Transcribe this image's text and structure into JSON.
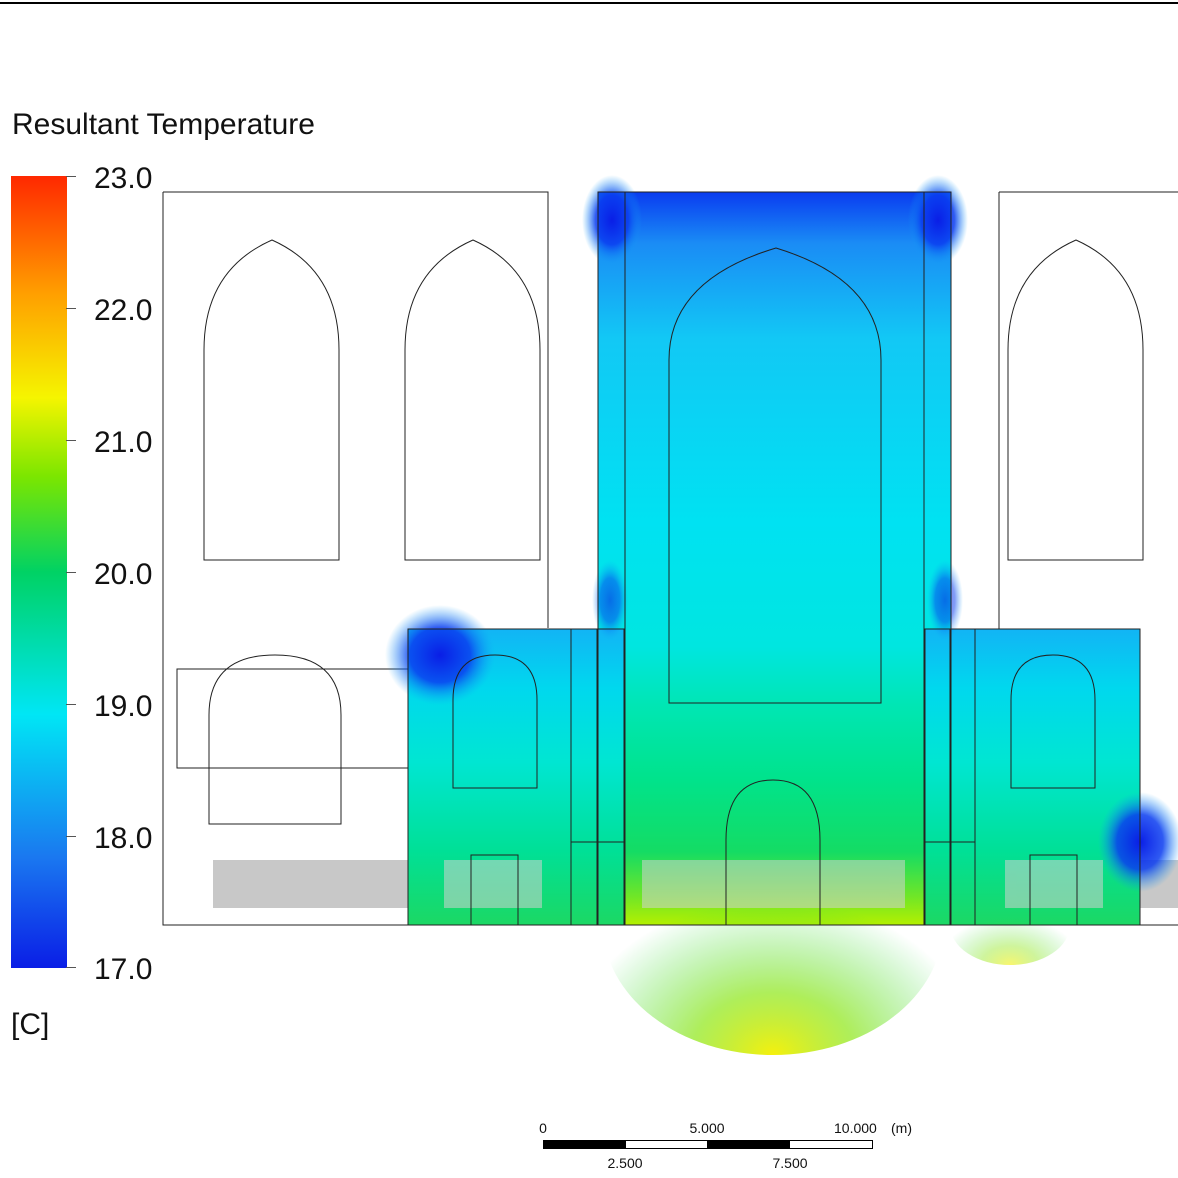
{
  "chart_data": {
    "type": "heatmap",
    "title": "Resultant Temperature",
    "unit": "[C]",
    "scale": {
      "min": 17.0,
      "max": 23.0
    },
    "ticks": [
      "23.0",
      "22.0",
      "21.0",
      "20.0",
      "19.0",
      "18.0",
      "17.0"
    ],
    "colors": {
      "cold": "#0a1ee6",
      "cool": "#00e6f5",
      "mid": "#00d264",
      "warm": "#f5f500",
      "hot": "#ff2800",
      "ground": "#c8c8c8"
    },
    "scale_bar": {
      "unit": "(m)",
      "top_labels": [
        "0",
        "5.000",
        "10.000"
      ],
      "bottom_labels": [
        "2.500",
        "7.500"
      ]
    }
  }
}
